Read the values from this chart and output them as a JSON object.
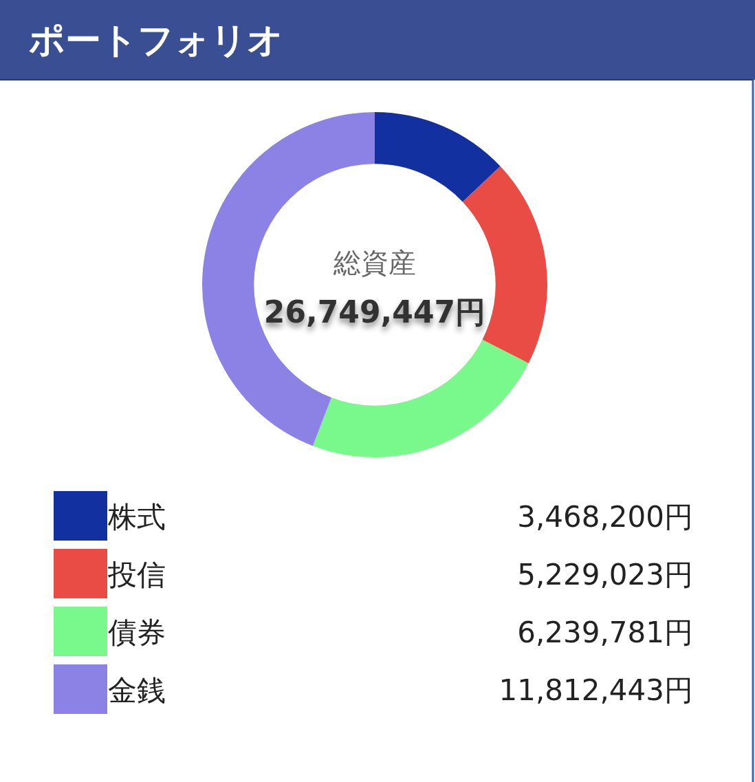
{
  "chart_data": {
    "type": "donut",
    "title": "ポートフォリオ",
    "categories": [
      "株式",
      "投信",
      "債券",
      "金銭"
    ],
    "values": [
      3468200,
      5229023,
      6239781,
      11812443
    ],
    "colors": [
      "#1330a0",
      "#e84c45",
      "#79f98c",
      "#8c82e6"
    ],
    "value_labels": [
      "3,468,200円",
      "5,229,023円",
      "6,239,781円",
      "11,812,443円"
    ],
    "annotations": [
      "総資産",
      "26,749,447円"
    ],
    "legend": "bottom"
  }
}
